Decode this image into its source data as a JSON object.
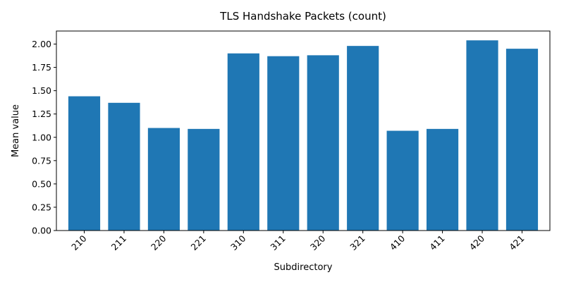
{
  "chart_data": {
    "type": "bar",
    "title": "TLS Handshake Packets (count)",
    "xlabel": "Subdirectory",
    "ylabel": "Mean value",
    "categories": [
      "210",
      "211",
      "220",
      "221",
      "310",
      "311",
      "320",
      "321",
      "410",
      "411",
      "420",
      "421"
    ],
    "values": [
      1.44,
      1.37,
      1.1,
      1.09,
      1.9,
      1.87,
      1.88,
      1.98,
      1.07,
      1.09,
      2.04,
      1.95
    ],
    "ylim": [
      0,
      2.14
    ],
    "yticks": [
      0.0,
      0.25,
      0.5,
      0.75,
      1.0,
      1.25,
      1.5,
      1.75,
      2.0
    ],
    "ytick_labels": [
      "0.00",
      "0.25",
      "0.50",
      "0.75",
      "1.00",
      "1.25",
      "1.50",
      "1.75",
      "2.00"
    ],
    "bar_color": "#1f77b4",
    "grid": false,
    "legend": "none"
  }
}
